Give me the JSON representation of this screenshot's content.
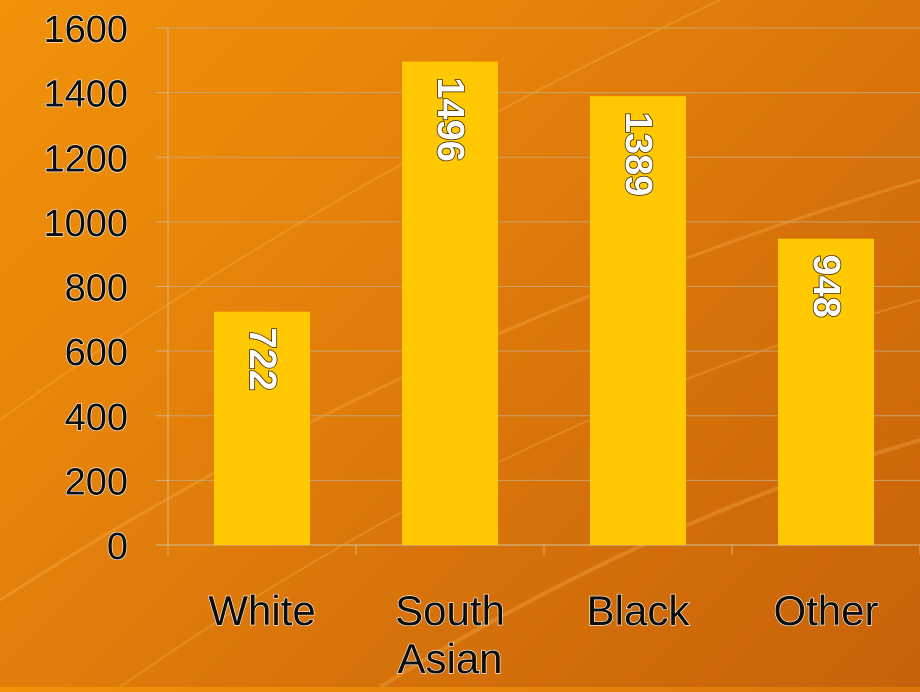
{
  "chart_data": {
    "type": "bar",
    "categories": [
      "White",
      "South\nAsian",
      "Black",
      "Other"
    ],
    "values": [
      722,
      1496,
      1389,
      948
    ],
    "data_labels": [
      "722",
      "1496",
      "1389",
      "948"
    ],
    "ylim": [
      0,
      1600
    ],
    "yticks": [
      0,
      200,
      400,
      600,
      800,
      1000,
      1200,
      1400,
      1600
    ],
    "ytick_labels": [
      "0",
      "200",
      "400",
      "600",
      "800",
      "1000",
      "1200",
      "1400",
      "1600"
    ],
    "grid": true,
    "legend": "none",
    "title": "",
    "xlabel": "",
    "ylabel": ""
  },
  "colors": {
    "bar": "#ffc800",
    "gridline": "#c9a26a",
    "axis": "#d8b07a",
    "tick_text": "#0d0d0d",
    "bar_label": "#ffffff"
  }
}
